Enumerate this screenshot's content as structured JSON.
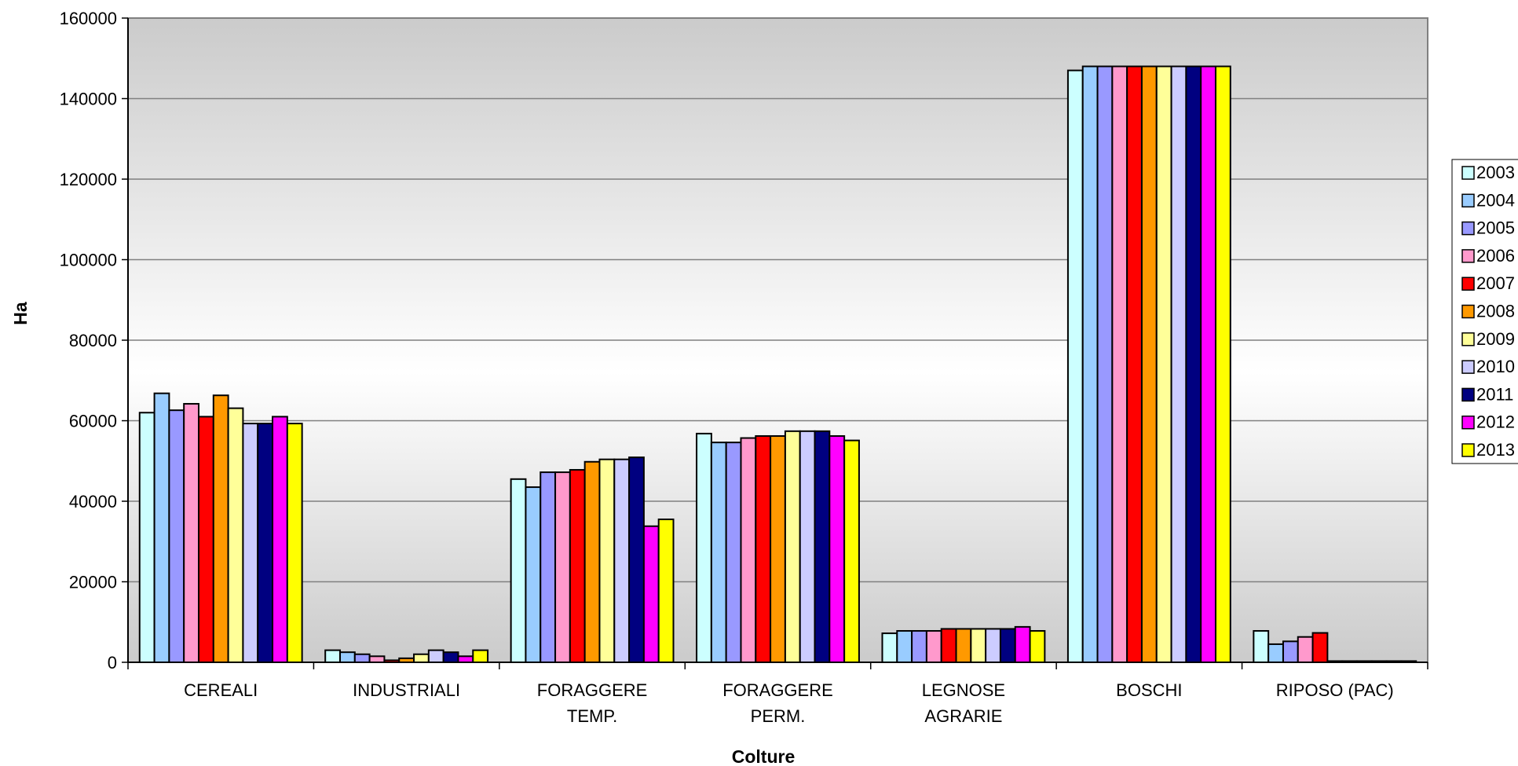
{
  "chart_data": {
    "type": "bar",
    "title": "",
    "xlabel": "Colture",
    "ylabel": "Ha",
    "ylim": [
      0,
      160000
    ],
    "yticks": [
      "0",
      "20000",
      "40000",
      "60000",
      "80000",
      "100000",
      "120000",
      "140000",
      "160000"
    ],
    "grid": true,
    "legend_position": "right",
    "categories": [
      [
        "CEREALI"
      ],
      [
        "INDUSTRIALI"
      ],
      [
        "FORAGGERE",
        "TEMP."
      ],
      [
        "FORAGGERE",
        "PERM."
      ],
      [
        "LEGNOSE",
        "AGRARIE"
      ],
      [
        "BOSCHI"
      ],
      [
        "RIPOSO (PAC)"
      ]
    ],
    "series": [
      {
        "name": "2003",
        "color": "#ccffff",
        "values": [
          62000,
          3000,
          45500,
          56800,
          7200,
          147000,
          7800
        ]
      },
      {
        "name": "2004",
        "color": "#99ccff",
        "values": [
          66800,
          2500,
          43500,
          54600,
          7800,
          148000,
          4500
        ]
      },
      {
        "name": "2005",
        "color": "#9999ff",
        "values": [
          62600,
          2000,
          47200,
          54600,
          7800,
          148000,
          5200
        ]
      },
      {
        "name": "2006",
        "color": "#ff99cc",
        "values": [
          64200,
          1500,
          47200,
          55700,
          7800,
          148000,
          6300
        ]
      },
      {
        "name": "2007",
        "color": "#ff0000",
        "values": [
          61000,
          500,
          47800,
          56200,
          8300,
          148000,
          7300
        ]
      },
      {
        "name": "2008",
        "color": "#ff9900",
        "values": [
          66300,
          1000,
          49800,
          56200,
          8300,
          148000,
          300
        ]
      },
      {
        "name": "2009",
        "color": "#ffff99",
        "values": [
          63100,
          2000,
          50400,
          57400,
          8300,
          148000,
          300
        ]
      },
      {
        "name": "2010",
        "color": "#ccccff",
        "values": [
          59300,
          3000,
          50400,
          57400,
          8300,
          148000,
          300
        ]
      },
      {
        "name": "2011",
        "color": "#000080",
        "values": [
          59300,
          2500,
          50900,
          57400,
          8300,
          148000,
          300
        ]
      },
      {
        "name": "2012",
        "color": "#ff00ff",
        "values": [
          61000,
          1500,
          33800,
          56200,
          8800,
          148000,
          300
        ]
      },
      {
        "name": "2013",
        "color": "#ffff00",
        "values": [
          59300,
          3000,
          35500,
          55100,
          7800,
          148000,
          300
        ]
      }
    ]
  }
}
